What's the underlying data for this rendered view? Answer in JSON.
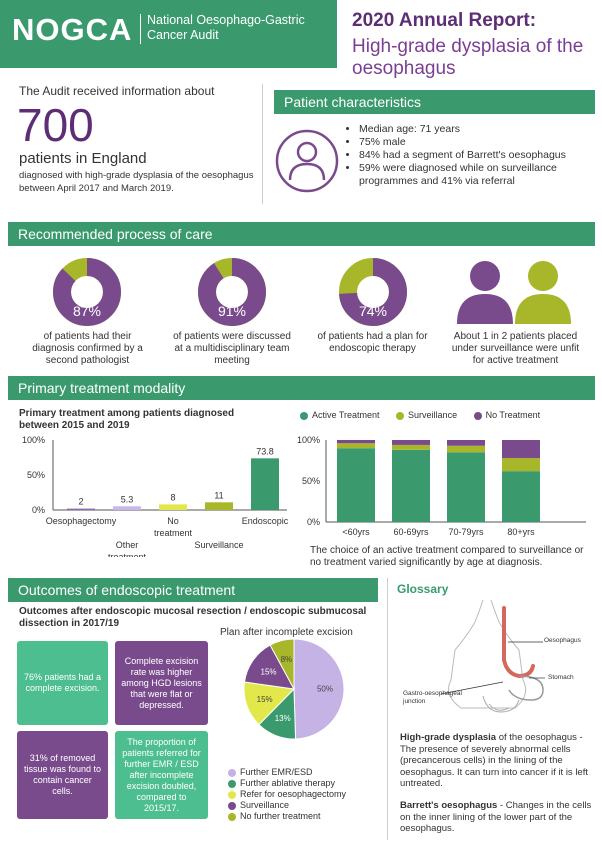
{
  "header": {
    "logo": "NOGCA",
    "logo_sub_1": "National Oesophago-Gastric",
    "logo_sub_2": "Cancer Audit",
    "report_title": "2020 Annual Report:",
    "report_sub_1": "High-grade dysplasia of the",
    "report_sub_2": "oesophagus"
  },
  "intro": {
    "lead": "The Audit received information about",
    "big_number": "700",
    "big_label": "patients in England",
    "detail": "diagnosed with high-grade dysplasia of the oesophagus between April 2017 and March 2019."
  },
  "patient": {
    "title": "Patient characteristics",
    "bullets": [
      "Median age: 71 years",
      "75% male",
      "84% had a segment of Barrett's oesophagus",
      "59% were diagnosed while on surveillance programmes and 41% via referral"
    ]
  },
  "care": {
    "title": "Recommended process of care",
    "items": [
      {
        "pct": "87%",
        "value": 87,
        "text": "of patients had their diagnosis confirmed by a second pathologist"
      },
      {
        "pct": "91%",
        "value": 91,
        "text": "of patients were discussed at a multidisciplinary team meeting"
      },
      {
        "pct": "74%",
        "value": 74,
        "text": "of patients had a plan for endoscopic therapy"
      }
    ],
    "people_text": "About 1 in 2 patients placed under surveillance were unfit for active treatment"
  },
  "modality": {
    "title": "Primary treatment modality",
    "chart_title_1": "Primary treatment among patients diagnosed",
    "chart_title_2": "between 2015 and 2019",
    "note": "The choice of an active treatment compared to surveillance or no treatment varied significantly by age at diagnosis."
  },
  "outcomes": {
    "title": "Outcomes of endoscopic treatment",
    "sub_1": "Outcomes after endoscopic mucosal resection / endoscopic submucosal",
    "sub_2": "dissection in 2017/19",
    "box1": "76% patients had a complete excision.",
    "box2": "Complete excision rate was higher among HGD lesions that were flat or depressed.",
    "box3": "31% of removed tissue was found to contain cancer cells.",
    "box4": "The proportion of patients referred for further EMR / ESD after incomplete excision doubled, compared to 2015/17.",
    "pie_title": "Plan after incomplete excision"
  },
  "glossary": {
    "title": "Glossary",
    "label_oesophagus": "Oesophagus",
    "label_stomach": "Stomach",
    "label_gej_1": "Gastro-oesophageal",
    "label_gej_2": "junction",
    "hgd_term": "High-grade dysplasia",
    "hgd_text": " of the oesophagus - The presence of severely abnormal cells (precancerous cells) in the lining of the oesophagus. It can turn into cancer if it is left untreated.",
    "barrett_term": "Barrett's oesophagus",
    "barrett_text": " - Changes in the cells on the inner lining of the lower part of the oesophagus."
  },
  "colors": {
    "green": "#3a9a6e",
    "purple": "#7a4b8c",
    "lime": "#a8b62a",
    "light_purple": "#c5b3e6",
    "yellow_green": "#e3e84a"
  },
  "chart_data": [
    {
      "type": "bar",
      "categories": [
        "Oesophagectomy",
        "Other treatment",
        "No treatment",
        "Surveillance",
        "Endoscopic"
      ],
      "values": [
        2,
        5.3,
        8,
        11,
        73.8
      ],
      "colors": [
        "#8a6bb0",
        "#c8b8e8",
        "#e3e84a",
        "#a8b62a",
        "#3a9a6e"
      ],
      "ylim": [
        0,
        100
      ],
      "yticks": [
        "0%",
        "50%",
        "100%"
      ]
    },
    {
      "type": "bar",
      "stacked": true,
      "categories": [
        "<60yrs",
        "60-69yrs",
        "70-79yrs",
        "80+yrs"
      ],
      "series": [
        {
          "name": "Active Treatment",
          "color": "#3a9a6e",
          "values": [
            90,
            88,
            85,
            62
          ]
        },
        {
          "name": "Surveillance",
          "color": "#a8b62a",
          "values": [
            6,
            6,
            8,
            16
          ]
        },
        {
          "name": "No Treatment",
          "color": "#7a4b8c",
          "values": [
            4,
            6,
            7,
            22
          ]
        }
      ],
      "ylim": [
        0,
        100
      ],
      "yticks": [
        "0%",
        "50%",
        "100%"
      ],
      "legend": "top"
    },
    {
      "type": "pie",
      "title": "Plan after incomplete excision",
      "categories": [
        "Further EMR/ESD",
        "Further ablative therapy",
        "Refer for oesophagectomy",
        "Surveillance",
        "No further treatment"
      ],
      "values": [
        50,
        13,
        15,
        15,
        8
      ],
      "labels": [
        "50%",
        "13%",
        "15%",
        "15%",
        "8%"
      ],
      "colors": [
        "#c5b3e6",
        "#3a9a6e",
        "#e3e84a",
        "#7a4b8c",
        "#a8b62a"
      ]
    }
  ]
}
